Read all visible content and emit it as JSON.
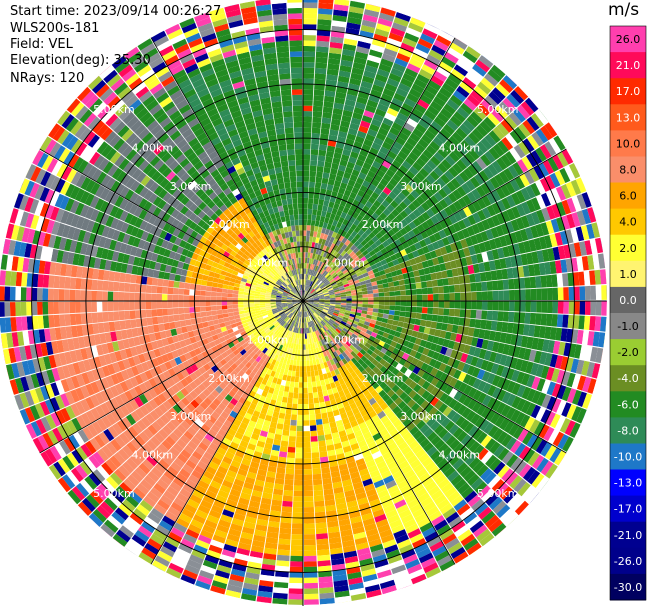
{
  "header": {
    "start_time": "Start time: 2023/09/14 00:26:27",
    "instrument": "WLS200s-181",
    "field": "Field: VEL",
    "elevation": "Elevation(deg): 35.30",
    "nrays": "NRays: 120"
  },
  "colorbar": {
    "unit": "m/s",
    "labels": [
      "26.0",
      "21.0",
      "17.0",
      "13.0",
      "10.0",
      "8.0",
      "6.0",
      "4.0",
      "2.0",
      "1.0",
      "0.0",
      "-1.0",
      "-2.0",
      "-4.0",
      "-6.0",
      "-8.0",
      "-10.0",
      "-13.0",
      "-17.0",
      "-21.0",
      "-26.0",
      "-30.0"
    ],
    "colors": [
      "#ff3fae",
      "#ff0a5a",
      "#ff2a00",
      "#ff5a1c",
      "#ff7a4a",
      "#fa8e6a",
      "#ffa500",
      "#ffc800",
      "#ffff33",
      "#fff470",
      "#666666",
      "#888888",
      "#9acd32",
      "#6b8e23",
      "#228b22",
      "#2e8b57",
      "#1e78c8",
      "#0000ff",
      "#0000cd",
      "#000090",
      "#00008b",
      "#000060"
    ]
  },
  "chart_data": {
    "type": "ppi",
    "field": "VEL",
    "unit": "m/s",
    "range_rings_km": [
      1.0,
      2.0,
      3.0,
      4.0,
      5.0
    ],
    "ring_labels": [
      "1.00km",
      "2.00km",
      "3.00km",
      "4.00km",
      "5.00km"
    ],
    "nrays": 120,
    "elevation_deg": 35.3,
    "max_range_km": 5.6
  }
}
